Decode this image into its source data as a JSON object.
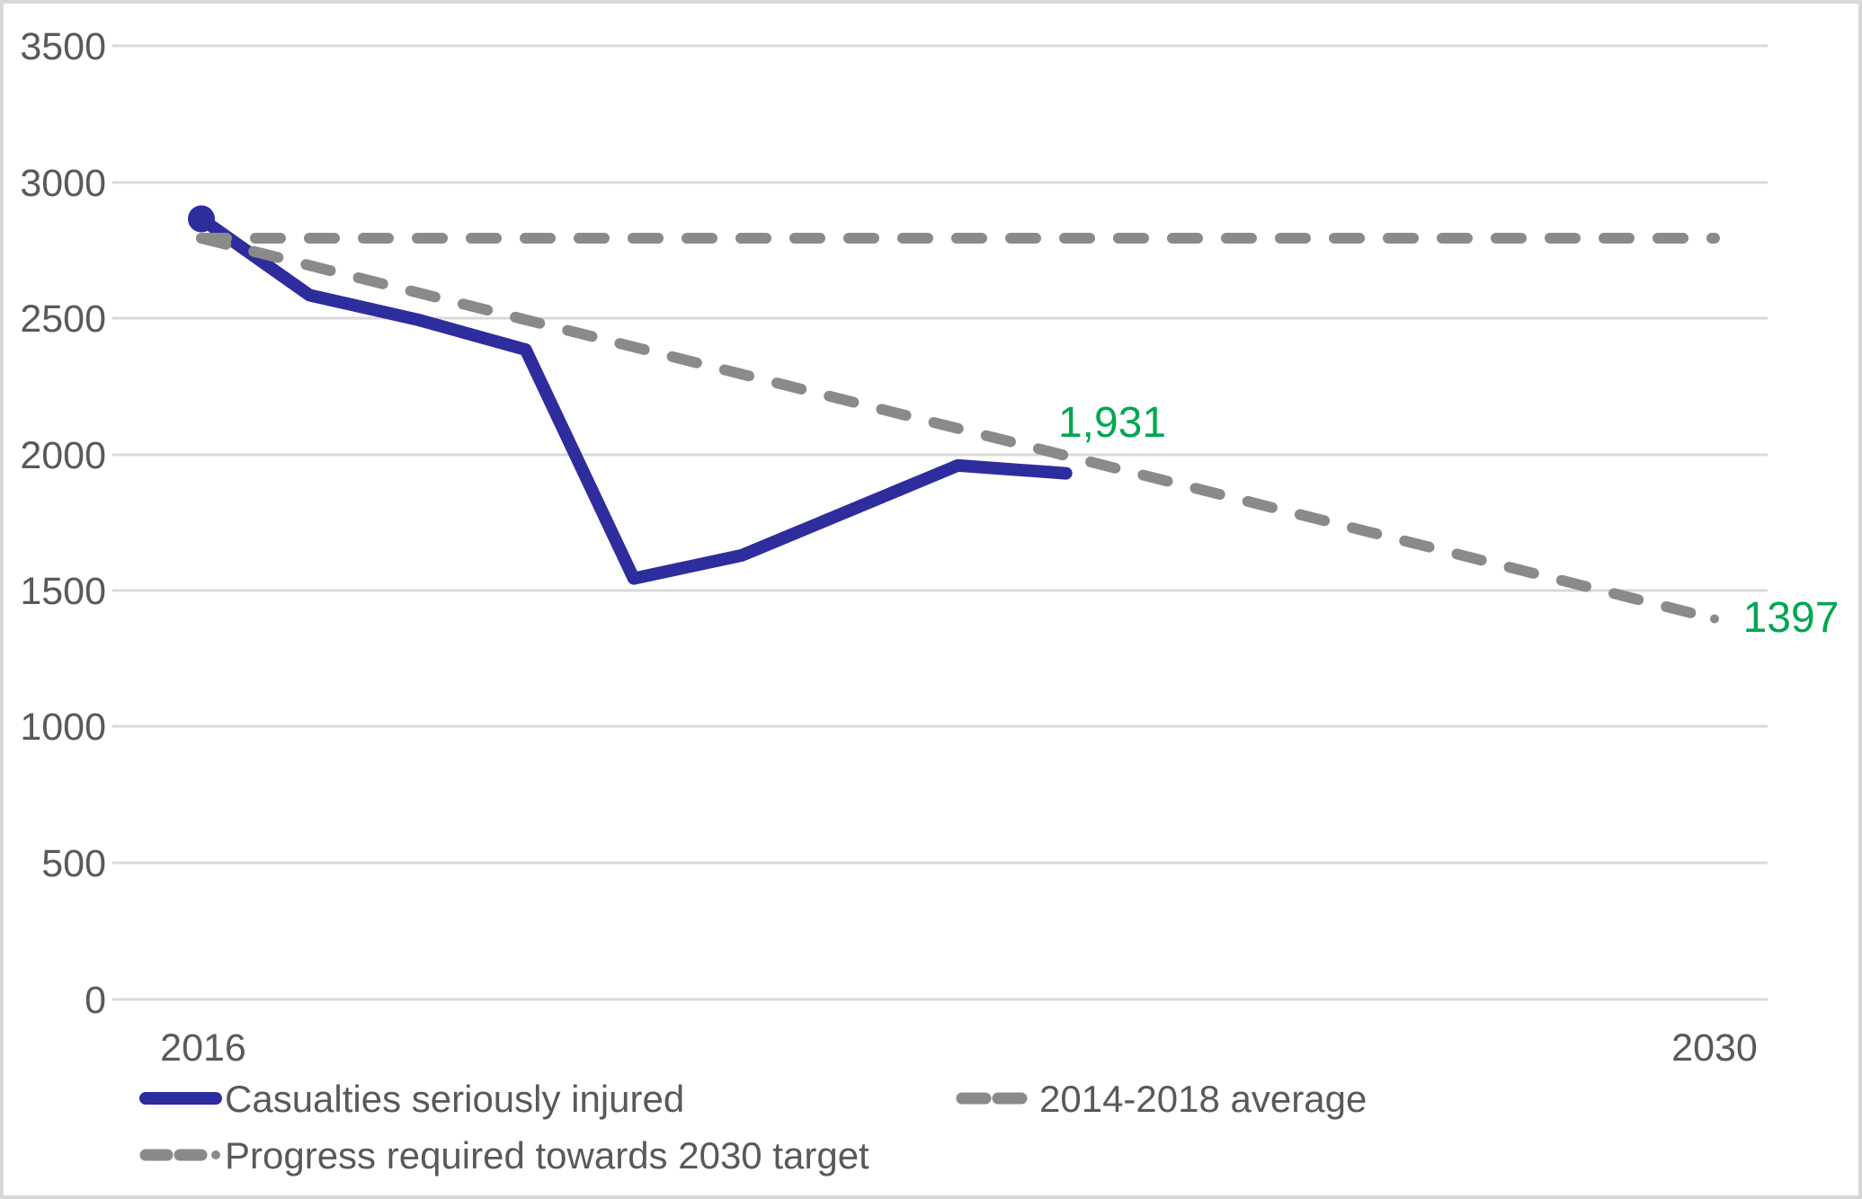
{
  "chart": {
    "background": "#FFFFFF",
    "border_color": "#D8D8D8",
    "grid_color": "#D9D9D9",
    "axis_text_color": "#595959",
    "accent_blue": "#2D2D9E",
    "accent_gray": "#8A8A8A",
    "accent_green": "#00A651"
  },
  "chart_data": {
    "type": "line",
    "title": "",
    "xlabel": "",
    "ylabel": "",
    "x_range": [
      2016,
      2030
    ],
    "ylim": [
      0,
      3500
    ],
    "grid": true,
    "legend_position": "bottom",
    "y_tick_labels": [
      "3500",
      "3000",
      "2500",
      "2000",
      "1500",
      "1000",
      "500",
      "0"
    ],
    "x_tick_labels": [
      "2016",
      "2030"
    ],
    "series": [
      {
        "name": "Casualties seriously injured",
        "color": "#2D2D9E",
        "style": "solid",
        "x": [
          2016,
          2017,
          2018,
          2019,
          2020,
          2021,
          2022,
          2023,
          2024
        ],
        "values": [
          2865,
          2585,
          2495,
          2385,
          1545,
          1630,
          1795,
          1960,
          1931
        ],
        "start_marker": true,
        "end_marker": false,
        "end_label": "1,931",
        "end_label_color": "#00A651"
      },
      {
        "name": "2014-2018 average",
        "color": "#8A8A8A",
        "style": "dashed",
        "x": [
          2016,
          2030
        ],
        "values": [
          2794,
          2794
        ],
        "start_marker": false,
        "end_marker": false,
        "end_label": "",
        "end_label_color": "#00A651"
      },
      {
        "name": "Progress required towards 2030 target",
        "color": "#8A8A8A",
        "style": "dashed",
        "x": [
          2016,
          2030
        ],
        "values": [
          2794,
          1397
        ],
        "start_marker": false,
        "end_marker": true,
        "end_label": "1397",
        "end_label_color": "#00A651"
      }
    ],
    "legend": [
      {
        "label": "Casualties seriously injured",
        "swatch": "solid-blue"
      },
      {
        "label": "2014-2018 average",
        "swatch": "dashed-gray"
      },
      {
        "label": "Progress required towards 2030 target",
        "swatch": "dash-dash-dot-gray"
      }
    ]
  }
}
